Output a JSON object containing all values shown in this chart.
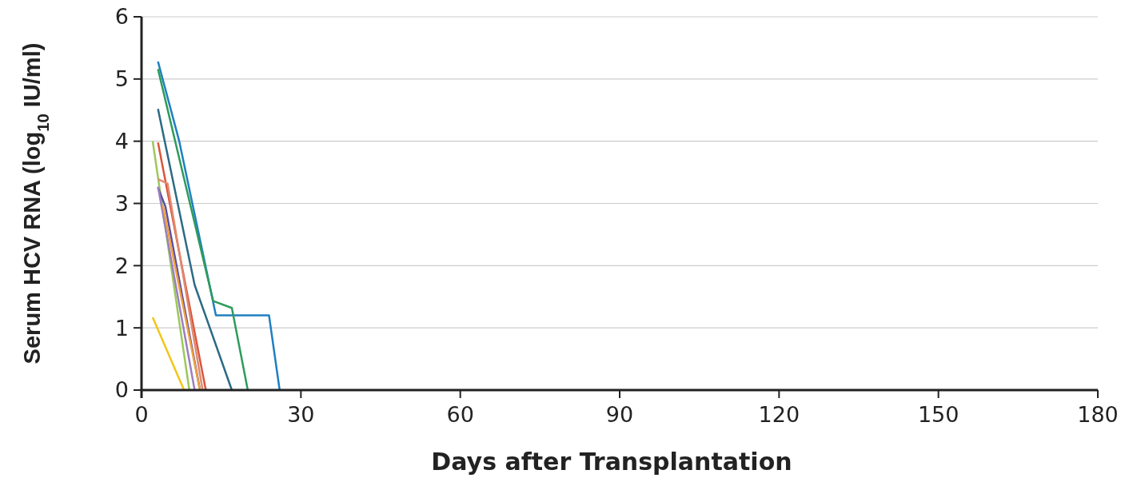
{
  "chart_data": {
    "type": "line",
    "xlabel": "Days after Transplantation",
    "ylabel": "Serum HCV RNA (log$_{10}$ IU/ml)",
    "xlim": [
      0,
      180
    ],
    "xticks": [
      0,
      30,
      60,
      90,
      120,
      150,
      180
    ],
    "ylim": [
      0,
      6
    ],
    "yticks": [
      0,
      1,
      2,
      3,
      4,
      5,
      6
    ],
    "grid": "y",
    "marker": "none",
    "line_style": "solid",
    "series": [
      {
        "color": "#1f7fc1",
        "x": [
          3.1,
          7.1,
          14,
          24,
          26
        ],
        "values": [
          5.28,
          4.0,
          1.2,
          1.2,
          0
        ]
      },
      {
        "color": "#2e9b5a",
        "x": [
          3.1,
          13.5,
          17,
          20
        ],
        "values": [
          5.16,
          1.43,
          1.32,
          0
        ]
      },
      {
        "color": "#2d6a85",
        "x": [
          3.1,
          10,
          17
        ],
        "values": [
          4.52,
          1.69,
          0
        ]
      },
      {
        "color": "#9cc85a",
        "x": [
          2.1,
          9
        ],
        "values": [
          4.0,
          0
        ]
      },
      {
        "color": "#d9553b",
        "x": [
          3.1,
          12.1
        ],
        "values": [
          3.98,
          0
        ]
      },
      {
        "color": "#e08a70",
        "x": [
          3.1,
          4.9,
          11.5
        ],
        "values": [
          3.39,
          3.32,
          0
        ]
      },
      {
        "color": "#5b4fa0",
        "x": [
          3.1,
          4.5,
          11
        ],
        "values": [
          3.25,
          2.95,
          0
        ]
      },
      {
        "color": "#9b7fc0",
        "x": [
          3.1,
          10
        ],
        "values": [
          3.27,
          0
        ]
      },
      {
        "color": "#f0a040",
        "x": [
          4,
          11
        ],
        "values": [
          2.97,
          0
        ]
      },
      {
        "color": "#f2c619",
        "x": [
          2.1,
          8
        ],
        "values": [
          1.17,
          0
        ]
      }
    ]
  }
}
